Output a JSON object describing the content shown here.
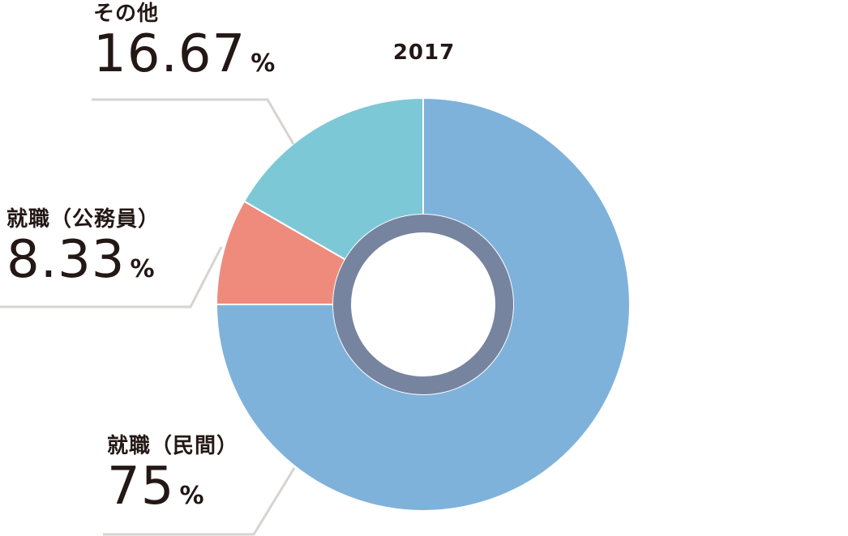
{
  "chart_data": {
    "type": "pie",
    "title": "2017",
    "unit": "%",
    "slices": [
      {
        "label": "就職（民間）",
        "value": 75,
        "value_text": "75",
        "color": "#7fb2da"
      },
      {
        "label": "就職（公務員）",
        "value": 8.33,
        "value_text": "8.33",
        "color": "#ef8b7d"
      },
      {
        "label": "その他",
        "value": 16.67,
        "value_text": "16.67",
        "color": "#7dc8d6"
      }
    ],
    "inner_ring_color": "#5f6f8f",
    "leader_line_color": "#d7d3d1"
  }
}
